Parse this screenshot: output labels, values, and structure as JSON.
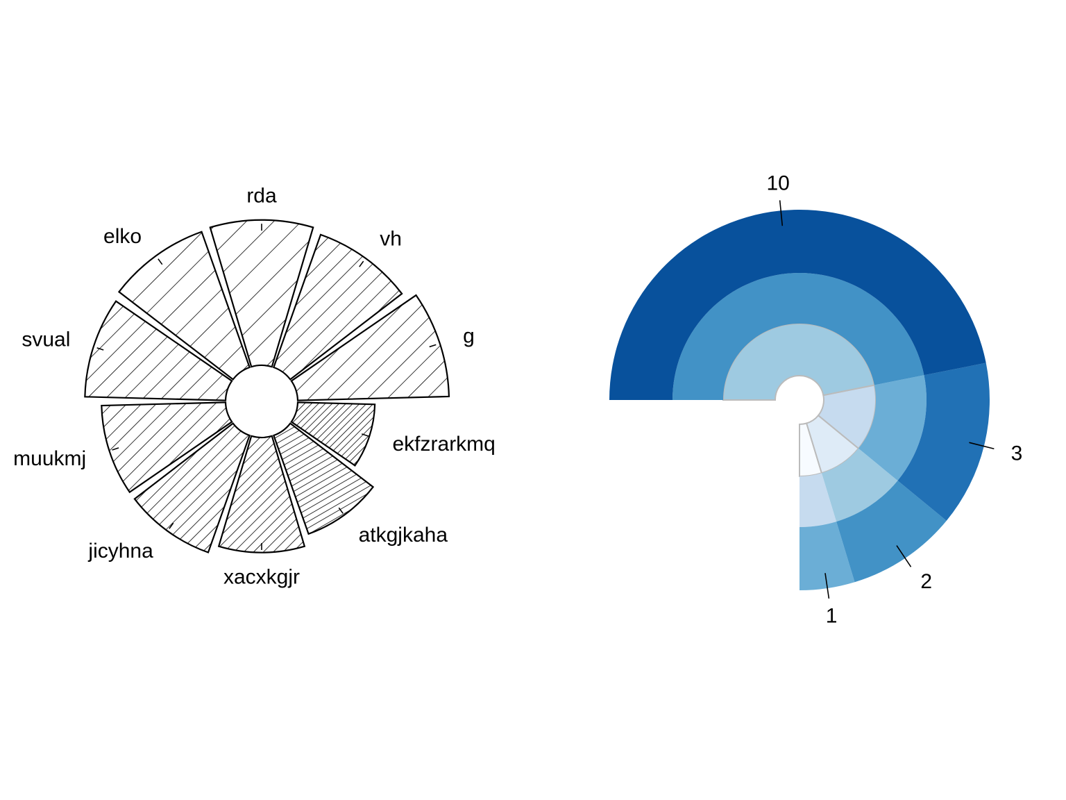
{
  "colors": {
    "ring_palette": [
      "#f7fbff",
      "#deebf7",
      "#c6dbef",
      "#9ecae1",
      "#6baed6",
      "#4292c6",
      "#2171b5",
      "#08519c"
    ],
    "petal_stroke": "#000000",
    "ring_segment_border": "#bbbbbb"
  },
  "chart_data": [
    {
      "type": "polar-bar",
      "categories": [
        "g",
        "vh",
        "rda",
        "elko",
        "svual",
        "muukmj",
        "jicyhna",
        "xacxkgjr",
        "atkgjkaha",
        "ekfzrarkmq"
      ],
      "values": [
        1.0,
        0.93,
        0.96,
        0.95,
        0.93,
        0.82,
        0.82,
        0.76,
        0.69,
        0.51
      ],
      "fill": "hatched",
      "axes": "none",
      "legend": "none"
    },
    {
      "type": "sunburst",
      "total": 16,
      "outer_labels": [
        "1",
        "2",
        "3",
        "10"
      ],
      "rings": [
        {
          "level": "inner",
          "segments": [
            {
              "value": 1,
              "shade": 0
            },
            {
              "value": 2,
              "shade": 1
            },
            {
              "value": 3,
              "shade": 2
            },
            {
              "value": 10,
              "shade": 3
            }
          ]
        },
        {
          "level": "middle",
          "segments": [
            {
              "value": 1,
              "shade": 2
            },
            {
              "value": 2,
              "shade": 3
            },
            {
              "value": 3,
              "shade": 4
            },
            {
              "value": 10,
              "shade": 5
            }
          ]
        },
        {
          "level": "outer",
          "segments": [
            {
              "label": "1",
              "value": 1,
              "shade": 4
            },
            {
              "label": "2",
              "value": 2,
              "shade": 5
            },
            {
              "label": "3",
              "value": 3,
              "shade": 6
            },
            {
              "label": "10",
              "value": 10,
              "shade": 7
            }
          ]
        }
      ],
      "axes": "none",
      "legend": "none"
    }
  ]
}
